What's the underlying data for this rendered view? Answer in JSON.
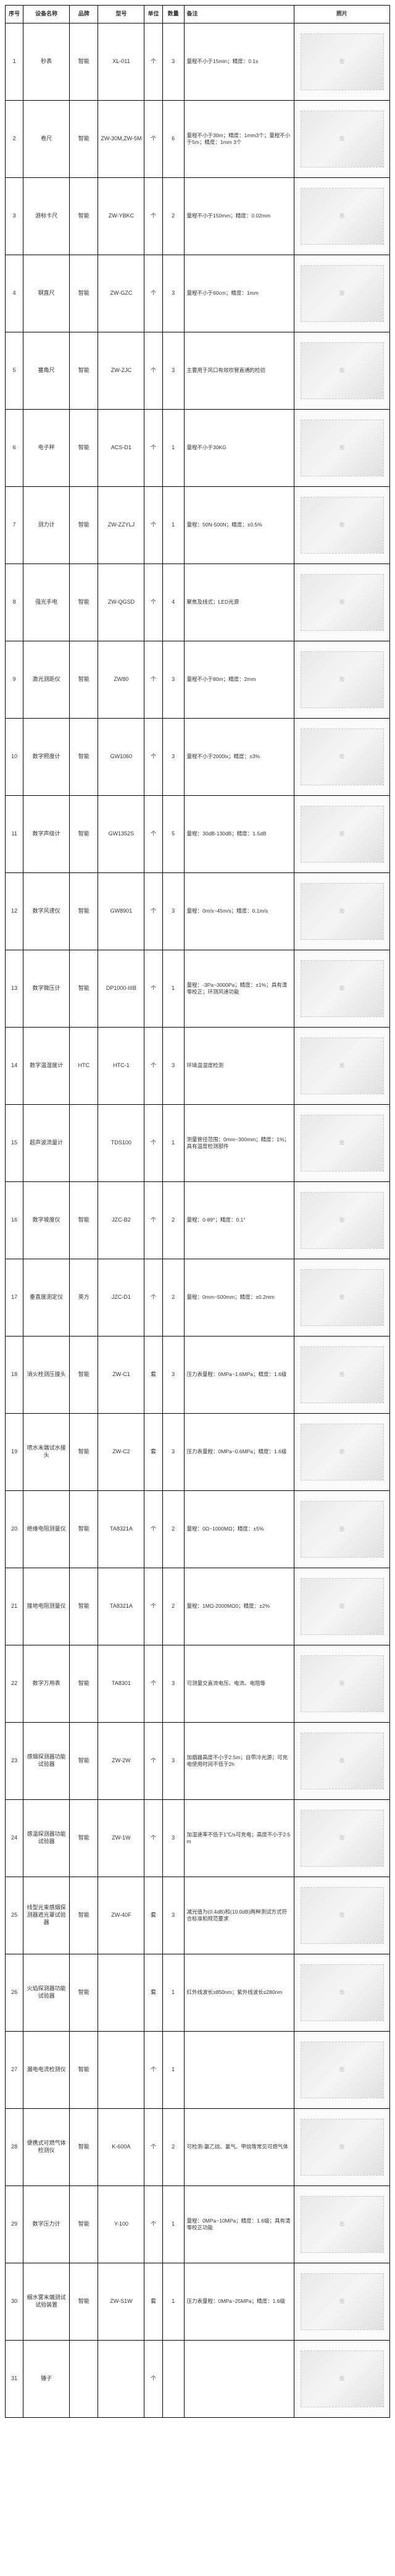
{
  "headers": {
    "seq": "序号",
    "name": "设备名称",
    "brand": "品牌",
    "model": "型号",
    "unit": "单位",
    "qty": "数量",
    "remark": "备注",
    "photo": "照片"
  },
  "rows": [
    {
      "seq": "1",
      "name": "秒表",
      "brand": "智能",
      "model": "XL-011",
      "unit": "个",
      "qty": "3",
      "remark": "量程不小于15min；精度：0.1s"
    },
    {
      "seq": "2",
      "name": "卷尺",
      "brand": "智能",
      "model": "ZW-30M,ZW-5M",
      "unit": "个",
      "qty": "6",
      "remark": "量程不小于30m；精度：1mm3个；量程不小于5m；精度：1mm 3个"
    },
    {
      "seq": "3",
      "name": "游标卡尺",
      "brand": "智能",
      "model": "ZW-YBKC",
      "unit": "个",
      "qty": "2",
      "remark": "量程不小于150mm；精度：0.02mm"
    },
    {
      "seq": "4",
      "name": "钢直尺",
      "brand": "智能",
      "model": "ZW-GZC",
      "unit": "个",
      "qty": "3",
      "remark": "量程不小于60cm；精度：1mm"
    },
    {
      "seq": "5",
      "name": "塞角尺",
      "brand": "智能",
      "model": "ZW-ZJC",
      "unit": "个",
      "qty": "3",
      "remark": "主要用于风口有效吹管直通的检验"
    },
    {
      "seq": "6",
      "name": "电子秤",
      "brand": "智能",
      "model": "ACS-D1",
      "unit": "个",
      "qty": "1",
      "remark": "量程不小于30KG"
    },
    {
      "seq": "7",
      "name": "测力计",
      "brand": "智能",
      "model": "ZW-ZZYLJ",
      "unit": "个",
      "qty": "1",
      "remark": "量程：50N-500N；精度：±0.5%"
    },
    {
      "seq": "8",
      "name": "强光手电",
      "brand": "智能",
      "model": "ZW-QGSD",
      "unit": "个",
      "qty": "4",
      "remark": "聚焦及线式；LED光源"
    },
    {
      "seq": "9",
      "name": "激光测距仪",
      "brand": "智能",
      "model": "ZW80",
      "unit": "个",
      "qty": "3",
      "remark": "量程不小于80m；精度：2mm"
    },
    {
      "seq": "10",
      "name": "数字照度计",
      "brand": "智能",
      "model": "GW1060",
      "unit": "个",
      "qty": "3",
      "remark": "量程不小于2000lx；精度：±3%"
    },
    {
      "seq": "11",
      "name": "数字声级计",
      "brand": "智能",
      "model": "GW1352S",
      "unit": "个",
      "qty": "5",
      "remark": "量程：30dB-130dB；精度：1.5dB"
    },
    {
      "seq": "12",
      "name": "数字风速仪",
      "brand": "智能",
      "model": "GW8901",
      "unit": "个",
      "qty": "3",
      "remark": "量程：0m/s~45m/s；精度：0.1m/s"
    },
    {
      "seq": "13",
      "name": "数字微压计",
      "brand": "智能",
      "model": "DP1000-IIIB",
      "unit": "个",
      "qty": "1",
      "remark": "量程：-3Pa~3000Pa；精度：±1%；具有清零校正；环测风速功能"
    },
    {
      "seq": "14",
      "name": "数字温湿度计",
      "brand": "HTC",
      "model": "HTC-1",
      "unit": "个",
      "qty": "3",
      "remark": "环境温湿度检测"
    },
    {
      "seq": "15",
      "name": "超声波流量计",
      "brand": "",
      "model": "TDS100",
      "unit": "个",
      "qty": "1",
      "remark": "测量管径范围：0mm~300mm；精度：1%；具有温度检测部件"
    },
    {
      "seq": "16",
      "name": "数字坡度仪",
      "brand": "智能",
      "model": "JZC-B2",
      "unit": "个",
      "qty": "2",
      "remark": "量程：0-89°；精度：0.1°"
    },
    {
      "seq": "17",
      "name": "垂直度测定仪",
      "brand": "英方",
      "model": "JZC-D1",
      "unit": "个",
      "qty": "2",
      "remark": "量程：0mm~500mm；精度：±0.2mm"
    },
    {
      "seq": "18",
      "name": "消火栓测压接头",
      "brand": "智能",
      "model": "ZW-C1",
      "unit": "套",
      "qty": "3",
      "remark": "压力表量程：0MPa~1.6MPa；精度：1.6级"
    },
    {
      "seq": "19",
      "name": "喷水末端试水接头",
      "brand": "智能",
      "model": "ZW-C2",
      "unit": "套",
      "qty": "3",
      "remark": "压力表量程：0MPa~0.6MPa；精度：1.6级"
    },
    {
      "seq": "20",
      "name": "绝缘电阻测量仪",
      "brand": "智能",
      "model": "TA8321A",
      "unit": "个",
      "qty": "2",
      "remark": "量程：0Ω~1000MΩ；精度：±5%"
    },
    {
      "seq": "21",
      "name": "接地电阻测量仪",
      "brand": "智能",
      "model": "TA8321A",
      "unit": "个",
      "qty": "2",
      "remark": "量程：1MΩ-2000MΩ0；精度：±2%"
    },
    {
      "seq": "22",
      "name": "数字万用表",
      "brand": "智能",
      "model": "TA8301",
      "unit": "个",
      "qty": "3",
      "remark": "可测量交直流电压、电流、电阻等"
    },
    {
      "seq": "23",
      "name": "感烟探测器功能试验器",
      "brand": "智能",
      "model": "ZW-2W",
      "unit": "个",
      "qty": "3",
      "remark": "加烟器高度不小于2.5m；自带冷光源；可充电使用时间不低于2h"
    },
    {
      "seq": "24",
      "name": "感温探测器功能试验器",
      "brand": "智能",
      "model": "ZW-1W",
      "unit": "个",
      "qty": "3",
      "remark": "加湿速率不低于1℃/s可充电；高度不小于2.5m"
    },
    {
      "seq": "25",
      "name": "线型光束感烟探测器遮光罩试验器",
      "brand": "智能",
      "model": "ZW-40F",
      "unit": "套",
      "qty": "3",
      "remark": "减光值为(0.4dB)和(10.0dB)两种测试方式符合标准和规范要求"
    },
    {
      "seq": "26",
      "name": "火焰探测器功能试验器",
      "brand": "智能",
      "model": "",
      "unit": "套",
      "qty": "1",
      "remark": "红外线波长≥850nm；紫外线波长≤280nm"
    },
    {
      "seq": "27",
      "name": "漏电电流检测仪",
      "brand": "智能",
      "model": "",
      "unit": "个",
      "qty": "1",
      "remark": ""
    },
    {
      "seq": "28",
      "name": "便携式可燃气体检测仪",
      "brand": "智能",
      "model": "K-600A",
      "unit": "个",
      "qty": "2",
      "remark": "可检测-氯乙烷、氯气、甲烷等常见可燃气体"
    },
    {
      "seq": "29",
      "name": "数字压力计",
      "brand": "智能",
      "model": "Y-100",
      "unit": "个",
      "qty": "1",
      "remark": "量程：0MPa~10MPa；精度：1.6级；具有清零校正功能"
    },
    {
      "seq": "30",
      "name": "细水雾末端测试试验装置",
      "brand": "智能",
      "model": "ZW-S1W",
      "unit": "套",
      "qty": "1",
      "remark": "压力表量程：0MPa~25MPa；精度：1.6级"
    },
    {
      "seq": "31",
      "name": "锤子",
      "brand": "",
      "model": "",
      "unit": "个",
      "qty": "",
      "remark": ""
    }
  ]
}
